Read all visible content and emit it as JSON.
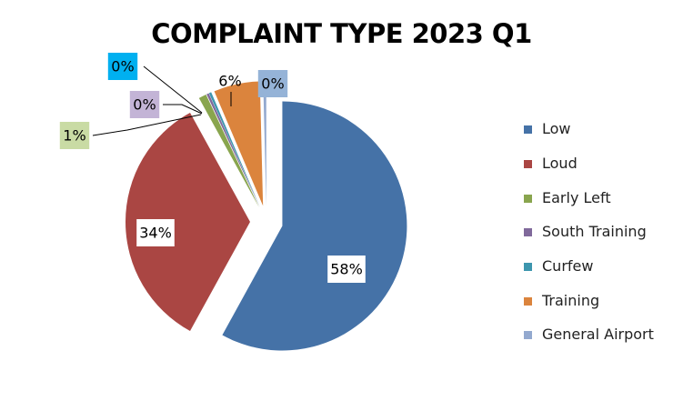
{
  "chart_data": {
    "type": "pie",
    "title": "COMPLAINT TYPE 2023 Q1",
    "slices": [
      {
        "name": "Low",
        "value": 58,
        "label": "58%",
        "color": "#4572A7",
        "label_bg": "#FFFFFF"
      },
      {
        "name": "Loud",
        "value": 34,
        "label": "34%",
        "color": "#AA4643",
        "label_bg": "#FFFFFF"
      },
      {
        "name": "Early Left",
        "value": 1,
        "label": "1%",
        "color": "#89A54E",
        "label_bg": "#C9DBA4"
      },
      {
        "name": "South Training",
        "value": 0.3,
        "label": "0%",
        "color": "#80699B",
        "label_bg": "#C3B4D6"
      },
      {
        "name": "Curfew",
        "value": 0.3,
        "label": "0%",
        "color": "#3D96AE",
        "label_bg": "#00B0F0"
      },
      {
        "name": "Training",
        "value": 6,
        "label": "6%",
        "color": "#DB843D",
        "label_bg": "#FFFFFF"
      },
      {
        "name": "General Airport",
        "value": 0.4,
        "label": "0%",
        "color": "#93A9CF",
        "label_bg": "#95B3D7"
      }
    ],
    "legend_position": "right"
  }
}
